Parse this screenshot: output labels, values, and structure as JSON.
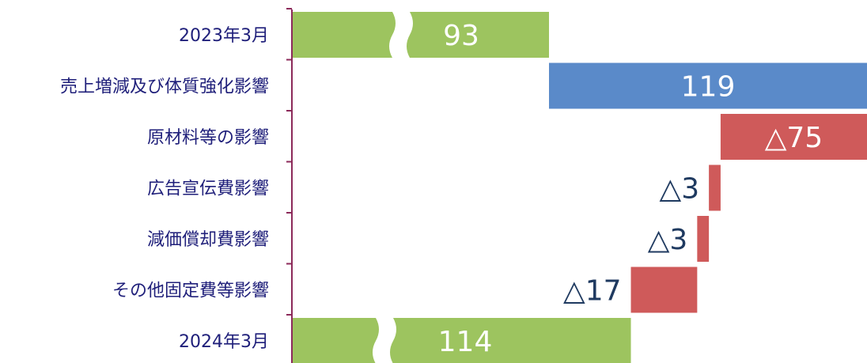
{
  "chart_data": {
    "type": "bar",
    "subtype": "waterfall-horizontal",
    "title": "",
    "categories": [
      "2023年3月",
      "売上増減及び体質強化影響",
      "原材料等の影響",
      "広告宣伝費影響",
      "減価償却費影響",
      "その他固定費等影響",
      "2024年3月"
    ],
    "values": [
      93,
      119,
      -75,
      -3,
      -3,
      -17,
      114
    ],
    "value_labels": [
      "93",
      "119",
      "△75",
      "△3",
      "△3",
      "△17",
      "114"
    ],
    "kinds": [
      "total",
      "increase",
      "decrease",
      "decrease",
      "decrease",
      "decrease",
      "total"
    ],
    "axis_break_on_totals": true,
    "grid": false,
    "legend": "none",
    "colors": {
      "total": "#9dc45f",
      "increase": "#5a8ac9",
      "decrease": "#cf5a5a",
      "axis": "#8c2a5a",
      "label_text": "#1f1f7a",
      "value_text_dark": "#1f3a60",
      "value_text_light": "#ffffff"
    }
  }
}
